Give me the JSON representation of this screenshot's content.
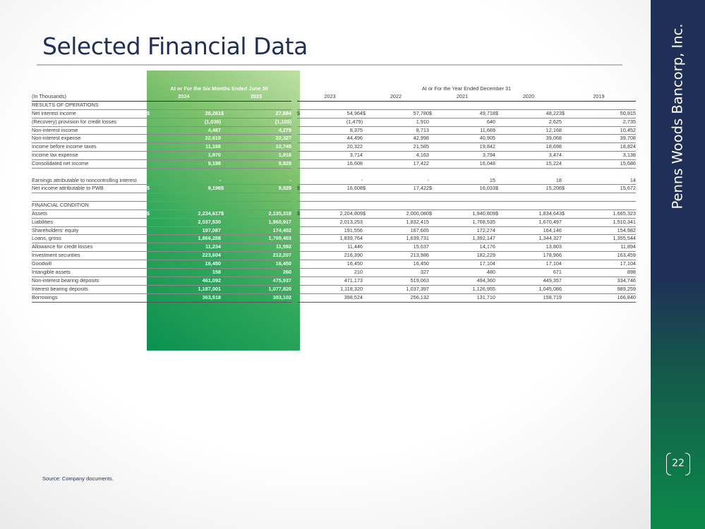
{
  "title": "Selected Financial Data",
  "company": "Penns Woods Bancorp, Inc.",
  "page_number": "22",
  "source": "Source: Company documents.",
  "colors": {
    "navy": "#1f2f57",
    "green": "#0c8a4a"
  },
  "table": {
    "interim_header": "At or For the Six Months Ended June 30",
    "annual_header": "At or For the Year Ended December 31",
    "unit_label": "(In Thousands)",
    "years": [
      "2024",
      "2023",
      "2023",
      "2022",
      "2021",
      "2020",
      "2019"
    ],
    "results_heading": "RESULTS OF OPERATIONS",
    "financial_heading": "FINANCIAL CONDITION",
    "results_rows": [
      {
        "label": "Net interest income",
        "dollar": true,
        "values": [
          "28,261",
          "27,684",
          "54,964",
          "57,780",
          "49,718",
          "48,223",
          "50,815"
        ]
      },
      {
        "label": "(Recovery) provision for credit losses",
        "values": [
          "(1,039)",
          "(1,109)",
          "(1,479)",
          "1,910",
          "640",
          "2,625",
          "2,735"
        ]
      },
      {
        "label": "Non-interest income",
        "values": [
          "4,487",
          "4,279",
          "8,375",
          "8,713",
          "11,669",
          "12,168",
          "10,452"
        ]
      },
      {
        "label": "Non-interest expense",
        "values": [
          "22,619",
          "22,327",
          "44,496",
          "42,998",
          "40,905",
          "39,068",
          "39,708"
        ]
      },
      {
        "label": "Income before income taxes",
        "values": [
          "11,168",
          "10,745",
          "20,322",
          "21,585",
          "19,842",
          "18,698",
          "18,824"
        ]
      },
      {
        "label": "Income tax expense",
        "values": [
          "1,970",
          "1,916",
          "3,714",
          "4,163",
          "3,794",
          "3,474",
          "3,138"
        ]
      },
      {
        "label": "Consolidated net income",
        "values": [
          "9,198",
          "8,829",
          "16,608",
          "17,422",
          "16,048",
          "15,224",
          "15,686"
        ]
      },
      {
        "label": "Earnings attributable to noncontrolling interest",
        "tall": true,
        "values": [
          "-",
          "-",
          "-",
          "-",
          "15",
          "18",
          "14"
        ]
      },
      {
        "label": "Net income attributable to PWB",
        "dollar": true,
        "values": [
          "9,198",
          "8,829",
          "16,608",
          "17,422",
          "16,033",
          "15,206",
          "15,672"
        ]
      }
    ],
    "condition_rows": [
      {
        "label": "Assets",
        "dollar": true,
        "values": [
          "2,234,617",
          "2,135,319",
          "2,204,809",
          "2,000,080",
          "1,940,809",
          "1,834,643",
          "1,665,323"
        ]
      },
      {
        "label": "Liabilities",
        "values": [
          "2,037,530",
          "1,960,917",
          "2,013,253",
          "1,832,415",
          "1,768,535",
          "1,670,497",
          "1,510,341"
        ]
      },
      {
        "label": "Shareholders' equity",
        "values": [
          "197,087",
          "174,402",
          "191,556",
          "167,665",
          "172,274",
          "164,146",
          "154,982"
        ]
      },
      {
        "label": "Loans, gross",
        "values": [
          "1,866,288",
          "1,769,403",
          "1,839,764",
          "1,639,731",
          "1,392,147",
          "1,344,327",
          "1,355,544"
        ]
      },
      {
        "label": "Allowance for credit losses",
        "values": [
          "11,234",
          "11,592",
          "11,446",
          "15,637",
          "14,176",
          "13,803",
          "11,894"
        ]
      },
      {
        "label": "Investment securities",
        "values": [
          "223,604",
          "212,207",
          "216,390",
          "213,986",
          "182,229",
          "178,966",
          "163,459"
        ]
      },
      {
        "label": "Goodwill",
        "values": [
          "16,450",
          "16,450",
          "16,450",
          "16,450",
          "17,104",
          "17,104",
          "17,104"
        ]
      },
      {
        "label": "Intangible assets",
        "values": [
          "158",
          "260",
          "210",
          "327",
          "480",
          "671",
          "898"
        ]
      },
      {
        "label": "Non-interest bearing deposits",
        "values": [
          "461,092",
          "475,937",
          "471,173",
          "519,063",
          "494,360",
          "449,357",
          "334,746"
        ]
      },
      {
        "label": "Interest bearing deposits",
        "values": [
          "1,187,001",
          "1,077,820",
          "1,118,320",
          "1,037,397",
          "1,126,955",
          "1,045,086",
          "989,259"
        ]
      },
      {
        "label": "Borrowings",
        "values": [
          "363,518",
          "383,102",
          "398,524",
          "256,132",
          "131,710",
          "158,719",
          "166,840"
        ]
      }
    ]
  }
}
